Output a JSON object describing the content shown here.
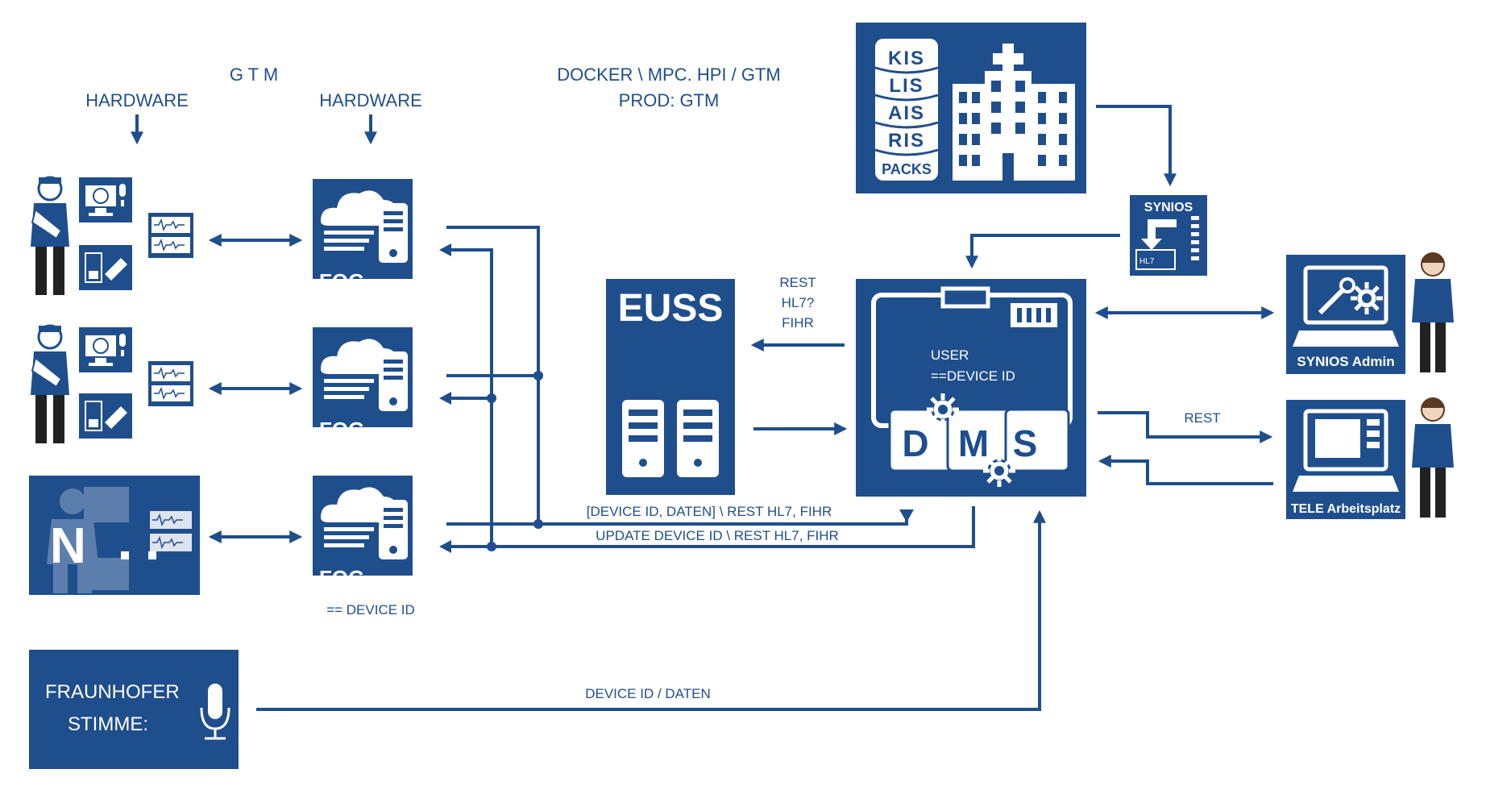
{
  "labels": {
    "gtm": "G T M",
    "hardware_left": "HARDWARE",
    "hardware_right": "HARDWARE",
    "docker_line1": "DOCKER \\ MPC. HPI / GTM",
    "docker_line2": "PROD: GTM",
    "fog_label": "FOG",
    "device_id_note": "== DEVICE ID",
    "euss_title": "EUSS",
    "rest_line1": "REST",
    "rest_line2": "HL7?",
    "rest_line3": "FIHR",
    "device_daten": "[DEVICE ID, DATEN] \\ REST HL7, FIHR",
    "update_device": "UPDATE DEVICE ID \\ REST HL7, FIHR",
    "user": "USER",
    "device_eq": "==DEVICE ID",
    "dms_d": "D",
    "dms_m": "M",
    "dms_s": "S",
    "rest_right": "REST",
    "synios": "SYNIOS",
    "hl7": "HL7",
    "synios_admin": "SYNIOS Admin",
    "tele": "TELE Arbeitsplatz",
    "db_kis": "KIS",
    "db_lis": "LIS",
    "db_ais": "AIS",
    "db_ris": "RIS",
    "db_packs": "PACKS",
    "fraunhofer_line1": "FRAUNHOFER",
    "fraunhofer_line2": "STIMME:",
    "device_id_daten": "DEVICE ID / DATEN",
    "n_label": "N"
  },
  "colors": {
    "primary": "#1f4e8c",
    "white": "#ffffff"
  },
  "icons": [
    "patient-icon",
    "monitor-icon",
    "device-icon",
    "cloud-icon",
    "server-icon",
    "database-icon",
    "hospital-icon",
    "microphone-icon",
    "gear-icon",
    "workstation-icon",
    "person-icon"
  ]
}
